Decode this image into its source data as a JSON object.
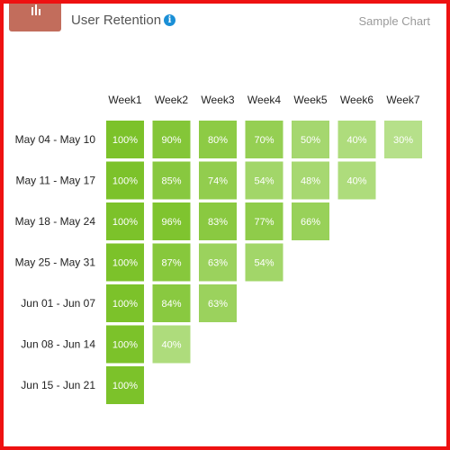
{
  "header": {
    "title": "User Retention",
    "sample_label": "Sample Chart",
    "logo_icon": "bar-chart-icon",
    "info_icon": "info-icon"
  },
  "colors": {
    "frame": "#ee1111",
    "logo_bg": "#c26d5c",
    "info": "#1a8fd6",
    "cell_high": "#7cc22a",
    "cell_low": "#b6e08a"
  },
  "chart_data": {
    "type": "heatmap",
    "title": "User Retention",
    "columns": [
      "Week1",
      "Week2",
      "Week3",
      "Week4",
      "Week5",
      "Week6",
      "Week7"
    ],
    "rows": [
      {
        "label": "May 04 - May 10",
        "values": [
          100,
          90,
          80,
          70,
          50,
          40,
          30
        ]
      },
      {
        "label": "May 11 - May 17",
        "values": [
          100,
          85,
          74,
          54,
          48,
          40
        ]
      },
      {
        "label": "May 18 - May 24",
        "values": [
          100,
          96,
          83,
          77,
          66
        ]
      },
      {
        "label": "May 25 - May 31",
        "values": [
          100,
          87,
          63,
          54
        ]
      },
      {
        "label": "Jun 01 - Jun 07",
        "values": [
          100,
          84,
          63
        ]
      },
      {
        "label": "Jun 08 - Jun 14",
        "values": [
          100,
          40
        ]
      },
      {
        "label": "Jun 15 - Jun 21",
        "values": [
          100
        ]
      }
    ],
    "value_suffix": "%"
  }
}
